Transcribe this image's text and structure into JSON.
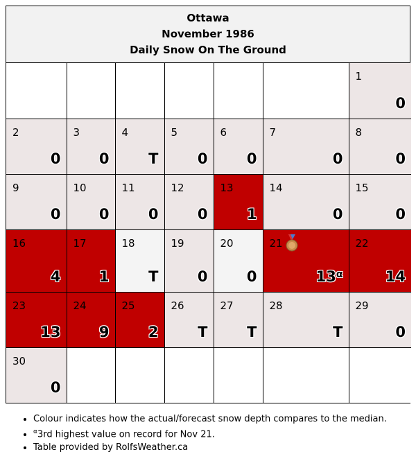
{
  "header": {
    "city": "Ottawa",
    "month": "November 1986",
    "title": "Daily Snow On The Ground"
  },
  "colors": {
    "above_median": "#c00000",
    "near_median": "#ede6e6",
    "light": "#f4f4f4",
    "empty": "#ffffff"
  },
  "weeks": [
    [
      null,
      null,
      null,
      null,
      null,
      null,
      {
        "day": "1",
        "value": "0",
        "shade": "norm"
      }
    ],
    [
      {
        "day": "2",
        "value": "0",
        "shade": "norm"
      },
      {
        "day": "3",
        "value": "0",
        "shade": "norm"
      },
      {
        "day": "4",
        "value": "T",
        "shade": "norm"
      },
      {
        "day": "5",
        "value": "0",
        "shade": "norm"
      },
      {
        "day": "6",
        "value": "0",
        "shade": "norm"
      },
      {
        "day": "7",
        "value": "0",
        "shade": "norm"
      },
      {
        "day": "8",
        "value": "0",
        "shade": "norm"
      }
    ],
    [
      {
        "day": "9",
        "value": "0",
        "shade": "norm"
      },
      {
        "day": "10",
        "value": "0",
        "shade": "norm"
      },
      {
        "day": "11",
        "value": "0",
        "shade": "norm"
      },
      {
        "day": "12",
        "value": "0",
        "shade": "norm"
      },
      {
        "day": "13",
        "value": "1",
        "shade": "high"
      },
      {
        "day": "14",
        "value": "0",
        "shade": "norm"
      },
      {
        "day": "15",
        "value": "0",
        "shade": "norm"
      }
    ],
    [
      {
        "day": "16",
        "value": "4",
        "shade": "high"
      },
      {
        "day": "17",
        "value": "1",
        "shade": "high"
      },
      {
        "day": "18",
        "value": "T",
        "shade": "low"
      },
      {
        "day": "19",
        "value": "0",
        "shade": "norm"
      },
      {
        "day": "20",
        "value": "0",
        "shade": "low"
      },
      {
        "day": "21",
        "value": "13",
        "mark": "α",
        "medal": "bronze-medal-icon",
        "shade": "high"
      },
      {
        "day": "22",
        "value": "14",
        "shade": "high"
      }
    ],
    [
      {
        "day": "23",
        "value": "13",
        "shade": "high"
      },
      {
        "day": "24",
        "value": "9",
        "shade": "high"
      },
      {
        "day": "25",
        "value": "2",
        "shade": "high"
      },
      {
        "day": "26",
        "value": "T",
        "shade": "norm"
      },
      {
        "day": "27",
        "value": "T",
        "shade": "norm"
      },
      {
        "day": "28",
        "value": "T",
        "shade": "norm"
      },
      {
        "day": "29",
        "value": "0",
        "shade": "norm"
      }
    ],
    [
      {
        "day": "30",
        "value": "0",
        "shade": "norm"
      },
      null,
      null,
      null,
      null,
      null,
      null
    ]
  ],
  "notes": {
    "legend": "Colour indicates how the actual/forecast snow depth compares to the median.",
    "footnote_mark": "α",
    "footnote": "3rd highest value on record for Nov 21.",
    "credit": "Table provided by RolfsWeather.ca"
  }
}
